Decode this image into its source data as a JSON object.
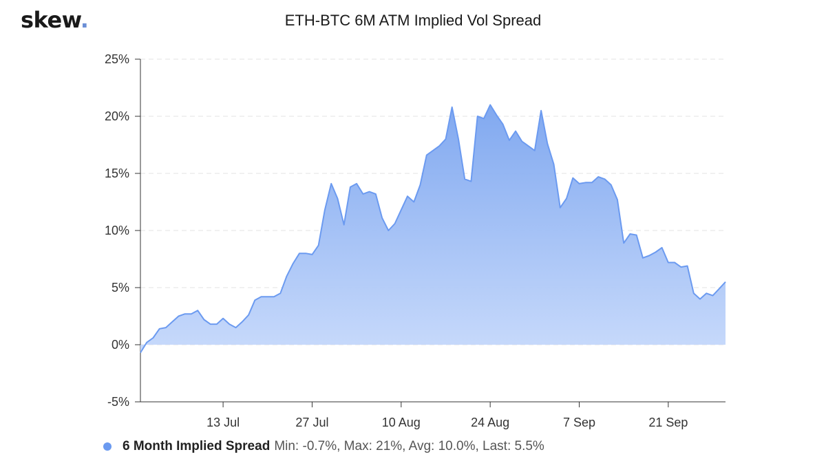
{
  "brand": {
    "name": "skew",
    "dot": "."
  },
  "chart_data": {
    "type": "area",
    "title": "ETH-BTC 6M ATM Implied Vol Spread",
    "xlabel": "",
    "ylabel": "",
    "ylim": [
      -5,
      25
    ],
    "y_ticks": [
      "25%",
      "20%",
      "15%",
      "10%",
      "5%",
      "0%",
      "-5%"
    ],
    "y_tick_values": [
      25,
      20,
      15,
      10,
      5,
      0,
      -5
    ],
    "x_ticks": [
      "13 Jul",
      "27 Jul",
      "10 Aug",
      "24 Aug",
      "7 Sep",
      "21 Sep"
    ],
    "x_tick_values": [
      13,
      27,
      41,
      55,
      69,
      83
    ],
    "x_unit": "day index from 30 Jun",
    "grid": true,
    "legend_position": "bottom-left",
    "colors": {
      "line": "#6b9af0",
      "fill_top": "#7aa4ef",
      "fill_bottom": "#c5d8fb",
      "marker": "#6b9af0"
    },
    "series": [
      {
        "name": "6 Month Implied Spread",
        "stats": "Min: -0.7%, Max: 21%, Avg: 10.0%, Last: 5.5%",
        "points": [
          [
            0,
            -0.7
          ],
          [
            1,
            0.2
          ],
          [
            2,
            0.6
          ],
          [
            3,
            1.4
          ],
          [
            4,
            1.5
          ],
          [
            5,
            2.0
          ],
          [
            6,
            2.5
          ],
          [
            7,
            2.7
          ],
          [
            8,
            2.7
          ],
          [
            9,
            3.0
          ],
          [
            10,
            2.2
          ],
          [
            11,
            1.8
          ],
          [
            12,
            1.8
          ],
          [
            13,
            2.3
          ],
          [
            14,
            1.8
          ],
          [
            15,
            1.5
          ],
          [
            16,
            2.0
          ],
          [
            17,
            2.6
          ],
          [
            18,
            3.9
          ],
          [
            19,
            4.2
          ],
          [
            20,
            4.2
          ],
          [
            21,
            4.2
          ],
          [
            22,
            4.5
          ],
          [
            23,
            6.0
          ],
          [
            24,
            7.1
          ],
          [
            25,
            8.0
          ],
          [
            26,
            8.0
          ],
          [
            27,
            7.9
          ],
          [
            28,
            8.7
          ],
          [
            29,
            11.8
          ],
          [
            30,
            14.1
          ],
          [
            31,
            12.8
          ],
          [
            32,
            10.5
          ],
          [
            33,
            13.8
          ],
          [
            34,
            14.1
          ],
          [
            35,
            13.2
          ],
          [
            36,
            13.4
          ],
          [
            37,
            13.2
          ],
          [
            38,
            11.1
          ],
          [
            39,
            10.0
          ],
          [
            40,
            10.6
          ],
          [
            41,
            11.8
          ],
          [
            42,
            13.0
          ],
          [
            43,
            12.5
          ],
          [
            44,
            14.0
          ],
          [
            45,
            16.6
          ],
          [
            46,
            17.0
          ],
          [
            47,
            17.4
          ],
          [
            48,
            18.0
          ],
          [
            49,
            20.8
          ],
          [
            50,
            18.0
          ],
          [
            51,
            14.5
          ],
          [
            52,
            14.3
          ],
          [
            53,
            20.0
          ],
          [
            54,
            19.8
          ],
          [
            55,
            21.0
          ],
          [
            56,
            20.1
          ],
          [
            57,
            19.3
          ],
          [
            58,
            17.9
          ],
          [
            59,
            18.7
          ],
          [
            60,
            17.8
          ],
          [
            61,
            17.4
          ],
          [
            62,
            17.0
          ],
          [
            63,
            20.5
          ],
          [
            64,
            17.6
          ],
          [
            65,
            15.8
          ],
          [
            66,
            12.0
          ],
          [
            67,
            12.8
          ],
          [
            68,
            14.6
          ],
          [
            69,
            14.1
          ],
          [
            70,
            14.2
          ],
          [
            71,
            14.2
          ],
          [
            72,
            14.7
          ],
          [
            73,
            14.5
          ],
          [
            74,
            14.0
          ],
          [
            75,
            12.7
          ],
          [
            76,
            8.9
          ],
          [
            77,
            9.7
          ],
          [
            78,
            9.6
          ],
          [
            79,
            7.6
          ],
          [
            80,
            7.8
          ],
          [
            81,
            8.1
          ],
          [
            82,
            8.5
          ],
          [
            83,
            7.2
          ],
          [
            84,
            7.2
          ],
          [
            85,
            6.8
          ],
          [
            86,
            6.9
          ],
          [
            87,
            4.5
          ],
          [
            88,
            4.0
          ],
          [
            89,
            4.5
          ],
          [
            90,
            4.3
          ],
          [
            91,
            4.9
          ],
          [
            92,
            5.5
          ]
        ]
      }
    ]
  }
}
